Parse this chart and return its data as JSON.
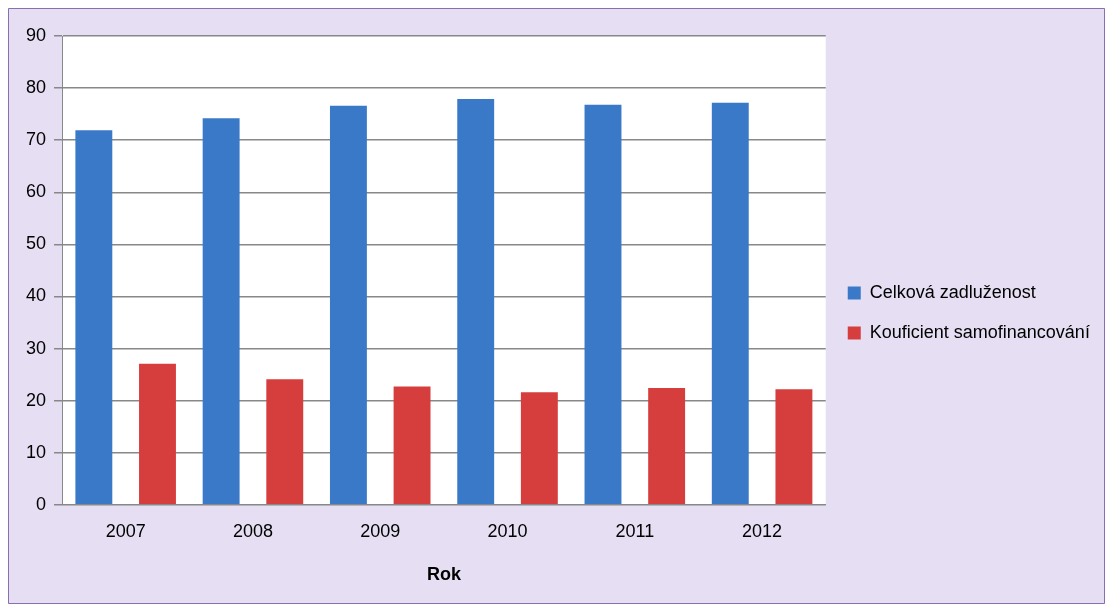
{
  "chart_data": {
    "type": "bar",
    "xlabel": "Rok",
    "categories": [
      "2007",
      "2008",
      "2009",
      "2010",
      "2011",
      "2012"
    ],
    "series": [
      {
        "name": "Celková zadluženost",
        "color": "#3a78c8",
        "values": [
          71.9,
          74.2,
          76.6,
          77.9,
          76.8,
          77.2
        ]
      },
      {
        "name": "Kouficient samofinancování",
        "color": "#d63e3e",
        "values": [
          27.1,
          24.1,
          22.7,
          21.6,
          22.4,
          22.2
        ]
      }
    ],
    "ylim": [
      0,
      90
    ],
    "yticks": [
      0,
      10,
      20,
      30,
      40,
      50,
      60,
      70,
      80,
      90
    ],
    "grid": "y",
    "legend": "right"
  }
}
